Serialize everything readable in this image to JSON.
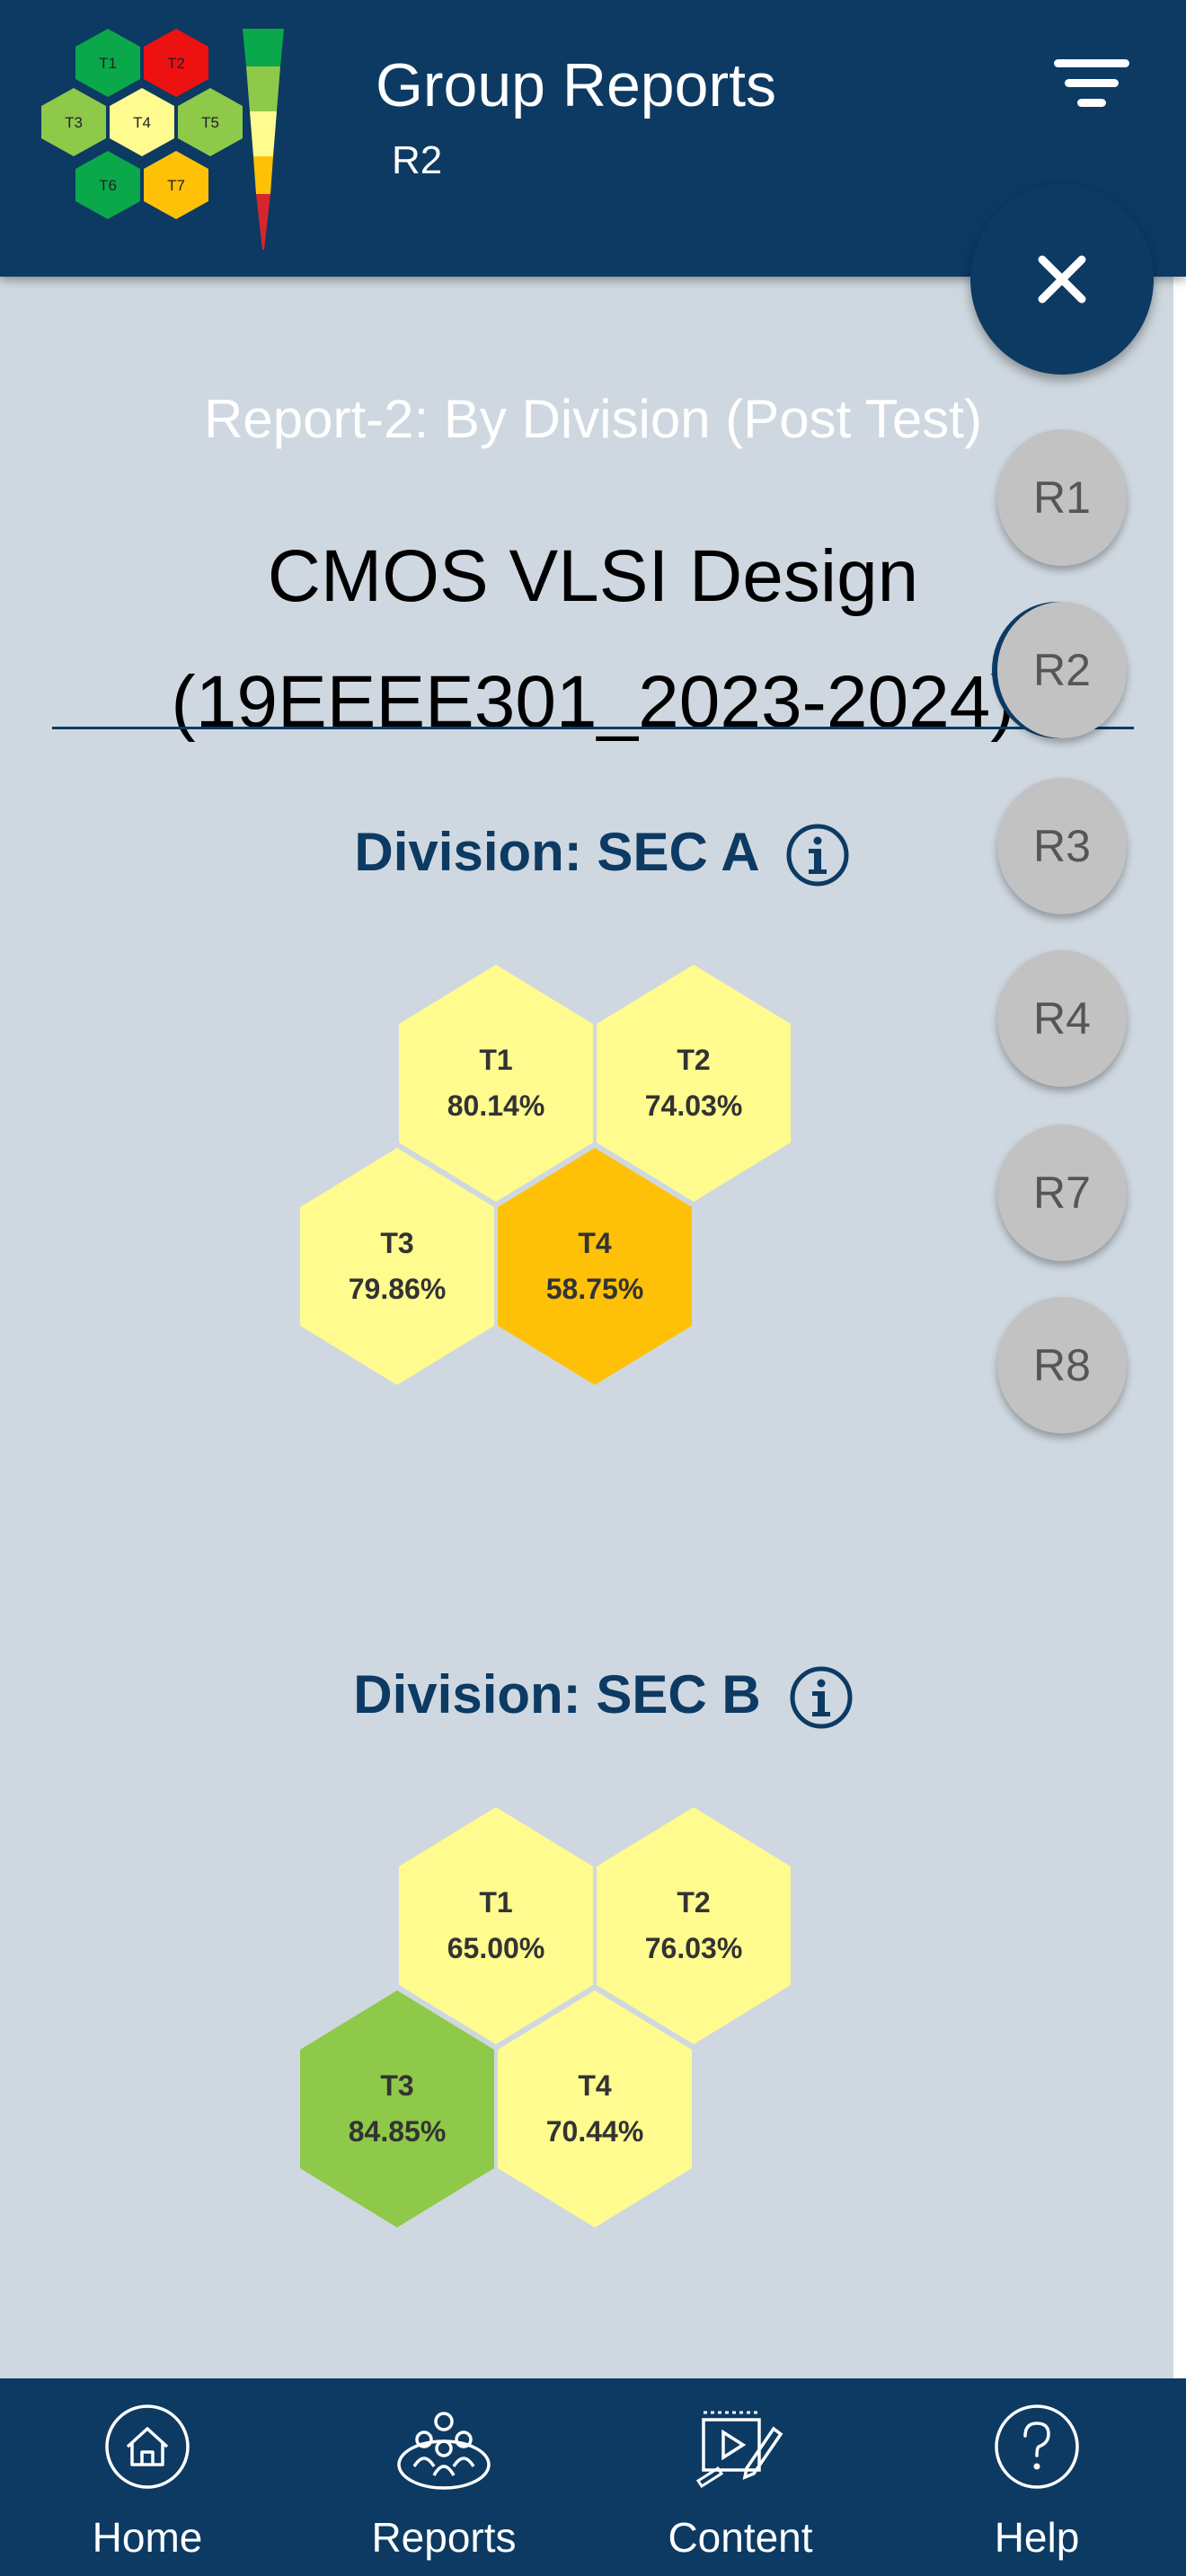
{
  "header": {
    "title": "Group Reports",
    "subtitle": "R2"
  },
  "logo": {
    "hexes": [
      "T1",
      "T2",
      "T3",
      "T4",
      "T5",
      "T6",
      "T7"
    ]
  },
  "report": {
    "title": "Report-2: By Division (Post Test)",
    "course_line1": "CMOS VLSI Design",
    "course_line2": "(19EEEE301_2023-2024)"
  },
  "report_menu": {
    "items": [
      "R1",
      "R2",
      "R3",
      "R4",
      "R7",
      "R8"
    ],
    "selected": "R2"
  },
  "divisions": [
    {
      "title": "Division: SEC A",
      "tiles": [
        {
          "label": "T1",
          "value": "80.14%",
          "color": "#fffb8f"
        },
        {
          "label": "T2",
          "value": "74.03%",
          "color": "#fffb8f"
        },
        {
          "label": "T3",
          "value": "79.86%",
          "color": "#fffb8f"
        },
        {
          "label": "T4",
          "value": "58.75%",
          "color": "#ffc107"
        }
      ]
    },
    {
      "title": "Division: SEC B",
      "tiles": [
        {
          "label": "T1",
          "value": "65.00%",
          "color": "#fffb8f"
        },
        {
          "label": "T2",
          "value": "76.03%",
          "color": "#fffb8f"
        },
        {
          "label": "T3",
          "value": "84.85%",
          "color": "#8ec94a"
        },
        {
          "label": "T4",
          "value": "70.44%",
          "color": "#fffb8f"
        }
      ]
    }
  ],
  "nav": {
    "home": "Home",
    "reports": "Reports",
    "content": "Content",
    "help": "Help"
  },
  "colors": {
    "primary": "#0c3a63",
    "background": "#cfd8e0"
  }
}
